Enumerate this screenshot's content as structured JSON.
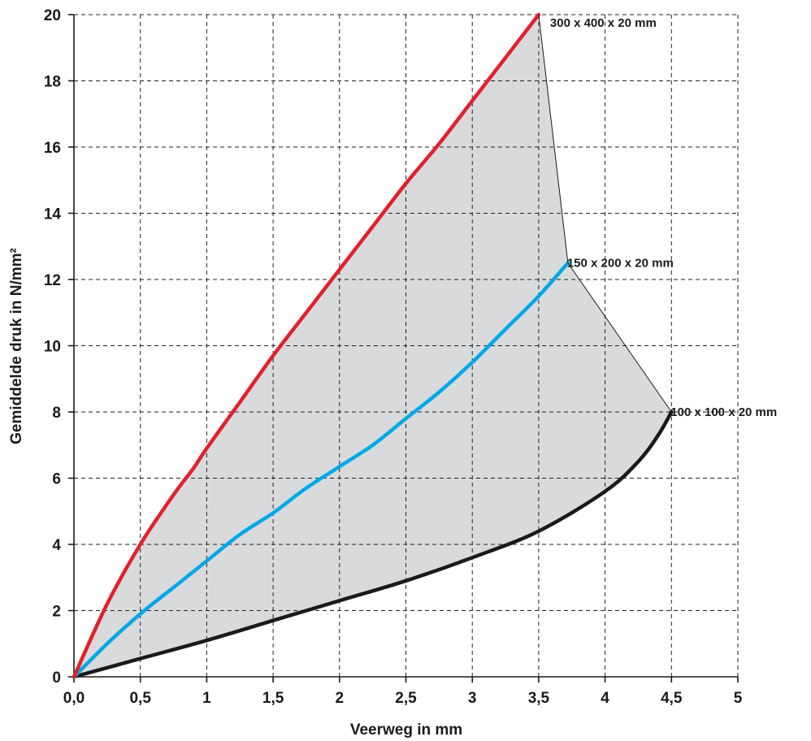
{
  "chart_data": {
    "type": "line",
    "xlabel": "Veerweg in mm",
    "ylabel": "Gemiddelde druk in N/mm²",
    "xlim": [
      0,
      5
    ],
    "ylim": [
      0,
      20
    ],
    "x_ticks": [
      0,
      0.5,
      1,
      1.5,
      2,
      2.5,
      3,
      3.5,
      4,
      4.5,
      5
    ],
    "x_tick_labels": [
      "0,0",
      "0,5",
      "1",
      "1,5",
      "2",
      "2,5",
      "3",
      "3,5",
      "4",
      "4,5",
      "5"
    ],
    "y_ticks": [
      0,
      2,
      4,
      6,
      8,
      10,
      12,
      14,
      16,
      18,
      20
    ],
    "y_tick_labels": [
      "0",
      "2",
      "4",
      "6",
      "8",
      "10",
      "12",
      "14",
      "16",
      "18",
      "20"
    ],
    "grid": true,
    "shaded_region_color": "#d9dadc",
    "series": [
      {
        "name": "300 x 400 x 20 mm",
        "color": "#e3202a",
        "x": [
          0,
          0.25,
          0.5,
          0.75,
          0.9,
          1.0,
          1.25,
          1.5,
          1.75,
          2.0,
          2.25,
          2.5,
          2.75,
          3.0,
          3.25,
          3.5
        ],
        "y": [
          0,
          2.2,
          4.0,
          5.5,
          6.3,
          6.9,
          8.3,
          9.7,
          11.0,
          12.3,
          13.6,
          14.9,
          16.1,
          17.4,
          18.7,
          20.0
        ]
      },
      {
        "name": "150 x 200 x 20 mm",
        "color": "#00a9e6",
        "x": [
          0,
          0.25,
          0.5,
          0.75,
          1.0,
          1.25,
          1.5,
          1.75,
          2.0,
          2.25,
          2.5,
          2.75,
          3.0,
          3.25,
          3.5,
          3.72
        ],
        "y": [
          0,
          1.0,
          1.9,
          2.7,
          3.5,
          4.3,
          4.95,
          5.7,
          6.35,
          7.0,
          7.8,
          8.6,
          9.5,
          10.5,
          11.5,
          12.5
        ]
      },
      {
        "name": "100 x 100 x 20 mm",
        "color": "#1a1a1a",
        "x": [
          0,
          0.5,
          1.0,
          1.5,
          2.0,
          2.5,
          3.0,
          3.5,
          4.0,
          4.25,
          4.4,
          4.5
        ],
        "y": [
          0,
          0.55,
          1.1,
          1.7,
          2.3,
          2.9,
          3.6,
          4.4,
          5.6,
          6.5,
          7.3,
          8.0
        ]
      }
    ]
  }
}
